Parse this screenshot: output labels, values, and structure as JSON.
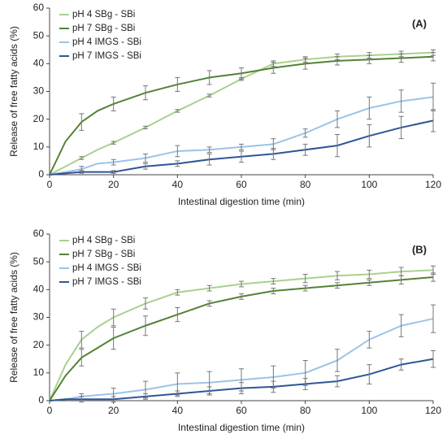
{
  "chart_data": [
    {
      "type": "line",
      "annotation": "(A)",
      "x_label": "Intestinal digestion time (min)",
      "y_label": "Release of free fatty acids (%)",
      "x": [
        0,
        5,
        10,
        15,
        20,
        30,
        40,
        50,
        60,
        70,
        80,
        90,
        100,
        110,
        120
      ],
      "xlim": [
        0,
        120
      ],
      "xticks": [
        0,
        20,
        40,
        60,
        80,
        100,
        120
      ],
      "ylim": [
        0,
        60
      ],
      "yticks": [
        0,
        10,
        20,
        30,
        40,
        50,
        60
      ],
      "legend": "upper left",
      "series": [
        {
          "name": "pH 4 SBg - SBi",
          "color": "#a9d18e",
          "values": [
            0,
            3,
            6,
            9,
            11.5,
            17,
            23,
            28.5,
            34.5,
            40,
            41.5,
            42.5,
            43,
            43.5,
            44
          ],
          "errors": [
            null,
            null,
            0.5,
            null,
            0.5,
            0.5,
            0.5,
            0.5,
            0.5,
            1,
            1,
            1,
            1,
            1,
            1
          ]
        },
        {
          "name": "pH 7 SBg - SBi",
          "color": "#548235",
          "values": [
            0,
            12,
            19,
            23,
            25.5,
            29.5,
            32.5,
            35,
            36.5,
            38.5,
            40,
            41,
            41.5,
            42,
            42.5
          ],
          "errors": [
            null,
            null,
            3,
            null,
            2.5,
            2.5,
            2.5,
            2.5,
            2,
            2,
            2,
            1.5,
            1.5,
            1.5,
            1.5
          ]
        },
        {
          "name": "pH 4 IMGS - SBi",
          "color": "#9dc3e6",
          "values": [
            0,
            1,
            2,
            4,
            4.5,
            6,
            8.5,
            9,
            10,
            11,
            15,
            20,
            24,
            26.5,
            28
          ],
          "errors": [
            null,
            null,
            1,
            null,
            1,
            1.5,
            2,
            1,
            1,
            2,
            1.5,
            3,
            4,
            4,
            5
          ]
        },
        {
          "name": "pH 7 IMGS - SBi",
          "color": "#2f5597",
          "values": [
            0,
            0.5,
            1,
            1,
            1,
            3,
            4,
            5.5,
            6.5,
            7.5,
            9,
            10.5,
            14,
            17,
            19.5
          ],
          "errors": [
            null,
            null,
            0.5,
            null,
            0.5,
            1,
            1,
            2,
            2,
            2,
            2,
            4,
            4,
            4,
            4
          ]
        }
      ]
    },
    {
      "type": "line",
      "annotation": "(B)",
      "x_label": "Intestinal digestion time (min)",
      "y_label": "Release of free fatty acids (%)",
      "x": [
        0,
        5,
        10,
        15,
        20,
        30,
        40,
        50,
        60,
        70,
        80,
        90,
        100,
        110,
        120
      ],
      "xlim": [
        0,
        120
      ],
      "xticks": [
        0,
        20,
        40,
        60,
        80,
        100,
        120
      ],
      "ylim": [
        0,
        60
      ],
      "yticks": [
        0,
        10,
        20,
        30,
        40,
        50,
        60
      ],
      "legend": "upper left",
      "series": [
        {
          "name": "pH 4 SBg - SBi",
          "color": "#a9d18e",
          "values": [
            0,
            13,
            22,
            26.5,
            30,
            35,
            39,
            40.5,
            42,
            43,
            44,
            45,
            45.5,
            46.5,
            47
          ],
          "errors": [
            null,
            null,
            3,
            null,
            3,
            2,
            1,
            1,
            1,
            1,
            1.5,
            1.5,
            1.5,
            1.5,
            1.5
          ]
        },
        {
          "name": "pH 7 SBg - SBi",
          "color": "#548235",
          "values": [
            0,
            9,
            15.5,
            19,
            22.5,
            27,
            31,
            35,
            37.5,
            39.5,
            40.5,
            41.5,
            42.5,
            43.5,
            44.5
          ],
          "errors": [
            null,
            null,
            3,
            null,
            4,
            3.5,
            2.5,
            1,
            1,
            1,
            1,
            1,
            1,
            1.5,
            1.5
          ]
        },
        {
          "name": "pH 4 IMGS - SBi",
          "color": "#9dc3e6",
          "values": [
            0,
            0.5,
            1.5,
            2,
            2.5,
            4,
            6,
            6.5,
            7.5,
            8.5,
            10,
            14.5,
            22,
            27,
            29.5
          ],
          "errors": [
            null,
            null,
            1,
            null,
            2,
            3,
            4,
            4,
            4,
            4,
            4.5,
            4,
            3,
            4,
            5
          ]
        },
        {
          "name": "pH 7 IMGS - SBi",
          "color": "#2f5597",
          "values": [
            0,
            0.5,
            0.5,
            0.5,
            0.5,
            1.5,
            2.5,
            3.5,
            4.5,
            5,
            6,
            7,
            9.5,
            13,
            15
          ],
          "errors": [
            null,
            null,
            1,
            null,
            1,
            1,
            1,
            1.5,
            2,
            2,
            2,
            2,
            3.5,
            2,
            3
          ]
        }
      ]
    }
  ]
}
